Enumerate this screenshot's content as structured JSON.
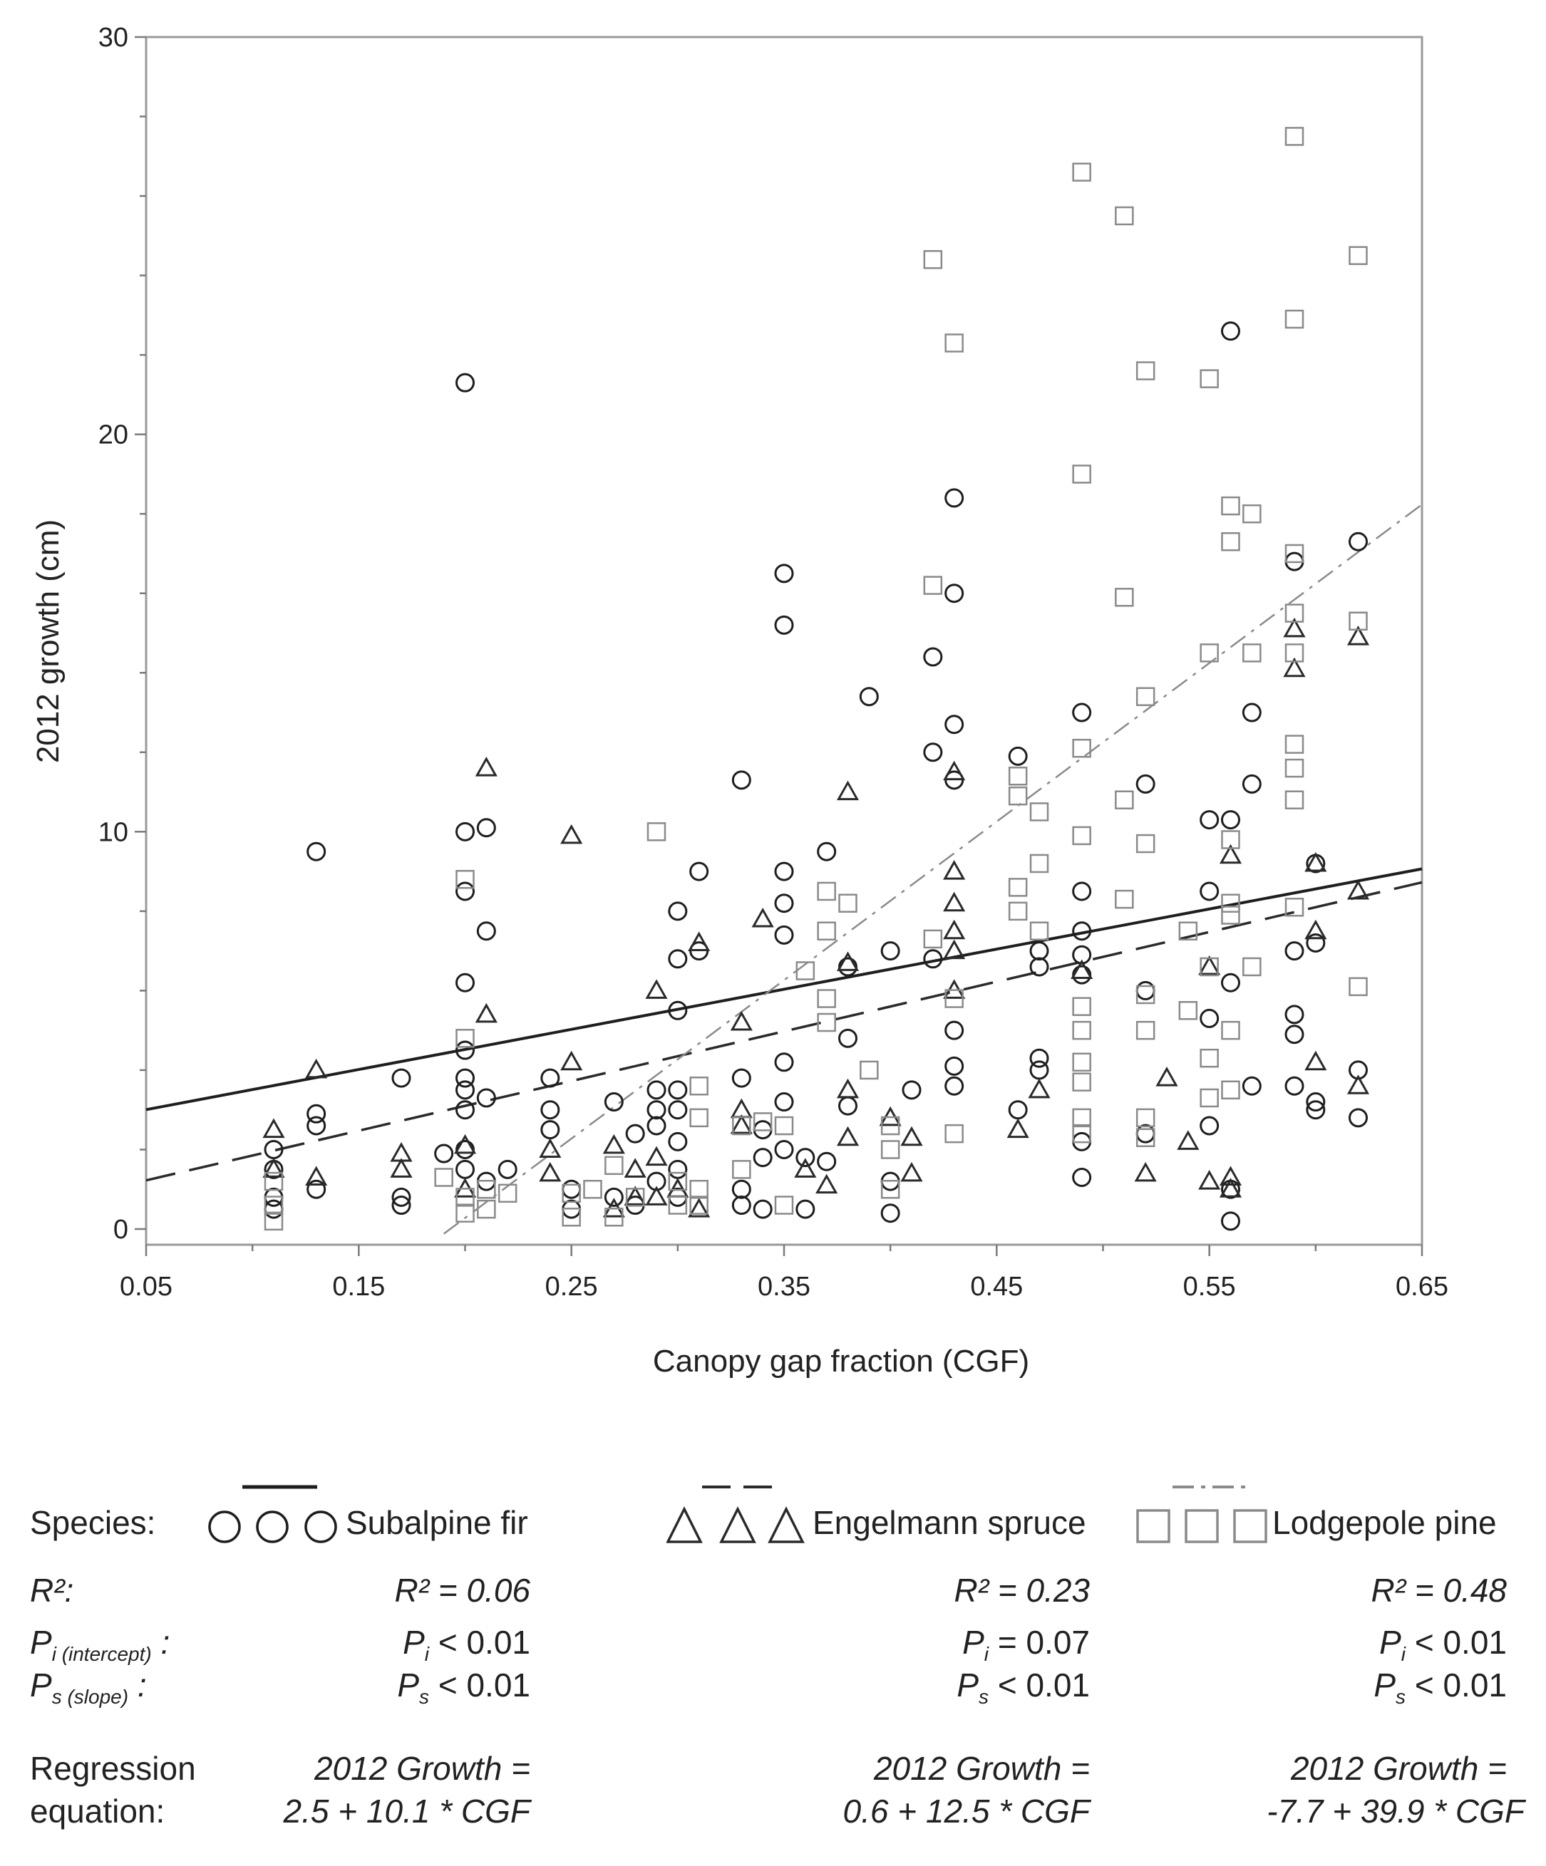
{
  "chart_data": {
    "type": "scatter",
    "xlabel": "Canopy gap fraction (CGF)",
    "ylabel": "2012 growth (cm)",
    "xlim": [
      0.05,
      0.65
    ],
    "ylim": [
      0,
      30
    ],
    "xticks": [
      "0.05",
      "0.15",
      "0.25",
      "0.35",
      "0.45",
      "0.55",
      "0.65"
    ],
    "yticks": [
      "0",
      "10",
      "20",
      "30"
    ],
    "series": [
      {
        "name": "Subalpine fir",
        "marker": "circle",
        "line_style": "solid",
        "regression": {
          "intercept": 2.5,
          "slope": 10.1,
          "x_range": [
            0.05,
            0.65
          ]
        },
        "points": [
          [
            0.11,
            0.5
          ],
          [
            0.11,
            0.8
          ],
          [
            0.11,
            1.5
          ],
          [
            0.11,
            2.0
          ],
          [
            0.13,
            2.6
          ],
          [
            0.13,
            2.9
          ],
          [
            0.13,
            9.5
          ],
          [
            0.13,
            1.0
          ],
          [
            0.17,
            0.6
          ],
          [
            0.17,
            0.8
          ],
          [
            0.17,
            3.8
          ],
          [
            0.19,
            1.9
          ],
          [
            0.2,
            1.5
          ],
          [
            0.2,
            2.0
          ],
          [
            0.2,
            3.0
          ],
          [
            0.2,
            3.5
          ],
          [
            0.2,
            3.8
          ],
          [
            0.2,
            4.5
          ],
          [
            0.2,
            6.2
          ],
          [
            0.2,
            8.5
          ],
          [
            0.2,
            10.0
          ],
          [
            0.2,
            21.3
          ],
          [
            0.21,
            3.3
          ],
          [
            0.21,
            7.5
          ],
          [
            0.21,
            10.1
          ],
          [
            0.21,
            1.2
          ],
          [
            0.22,
            1.5
          ],
          [
            0.24,
            2.5
          ],
          [
            0.24,
            3.0
          ],
          [
            0.24,
            3.8
          ],
          [
            0.25,
            1.0
          ],
          [
            0.25,
            0.5
          ],
          [
            0.27,
            3.2
          ],
          [
            0.27,
            0.8
          ],
          [
            0.28,
            2.4
          ],
          [
            0.28,
            0.6
          ],
          [
            0.29,
            3.5
          ],
          [
            0.29,
            3.0
          ],
          [
            0.29,
            2.6
          ],
          [
            0.29,
            1.2
          ],
          [
            0.3,
            0.8
          ],
          [
            0.3,
            1.5
          ],
          [
            0.3,
            2.2
          ],
          [
            0.3,
            3.0
          ],
          [
            0.3,
            3.5
          ],
          [
            0.3,
            5.5
          ],
          [
            0.3,
            6.8
          ],
          [
            0.3,
            8.0
          ],
          [
            0.31,
            9.0
          ],
          [
            0.31,
            7.0
          ],
          [
            0.33,
            11.3
          ],
          [
            0.33,
            3.8
          ],
          [
            0.33,
            1.0
          ],
          [
            0.33,
            0.6
          ],
          [
            0.34,
            2.5
          ],
          [
            0.34,
            1.8
          ],
          [
            0.34,
            0.5
          ],
          [
            0.35,
            15.2
          ],
          [
            0.35,
            16.5
          ],
          [
            0.35,
            9.0
          ],
          [
            0.35,
            8.2
          ],
          [
            0.35,
            7.4
          ],
          [
            0.35,
            4.2
          ],
          [
            0.35,
            3.2
          ],
          [
            0.35,
            2.0
          ],
          [
            0.36,
            1.8
          ],
          [
            0.36,
            0.5
          ],
          [
            0.37,
            9.5
          ],
          [
            0.37,
            1.7
          ],
          [
            0.38,
            6.6
          ],
          [
            0.38,
            4.8
          ],
          [
            0.38,
            3.1
          ],
          [
            0.39,
            13.4
          ],
          [
            0.4,
            7.0
          ],
          [
            0.4,
            1.2
          ],
          [
            0.4,
            0.4
          ],
          [
            0.41,
            3.5
          ],
          [
            0.42,
            12.0
          ],
          [
            0.42,
            14.4
          ],
          [
            0.42,
            6.8
          ],
          [
            0.43,
            18.4
          ],
          [
            0.43,
            16.0
          ],
          [
            0.43,
            12.7
          ],
          [
            0.43,
            11.3
          ],
          [
            0.43,
            5.0
          ],
          [
            0.43,
            4.1
          ],
          [
            0.43,
            3.6
          ],
          [
            0.46,
            11.9
          ],
          [
            0.46,
            3.0
          ],
          [
            0.47,
            7.0
          ],
          [
            0.47,
            6.6
          ],
          [
            0.47,
            4.3
          ],
          [
            0.47,
            4.0
          ],
          [
            0.49,
            13.0
          ],
          [
            0.49,
            8.5
          ],
          [
            0.49,
            7.5
          ],
          [
            0.49,
            6.9
          ],
          [
            0.49,
            6.4
          ],
          [
            0.49,
            2.2
          ],
          [
            0.49,
            1.3
          ],
          [
            0.52,
            11.2
          ],
          [
            0.52,
            6.0
          ],
          [
            0.52,
            2.4
          ],
          [
            0.55,
            10.3
          ],
          [
            0.55,
            8.5
          ],
          [
            0.55,
            5.3
          ],
          [
            0.55,
            2.6
          ],
          [
            0.56,
            22.6
          ],
          [
            0.56,
            10.3
          ],
          [
            0.56,
            6.2
          ],
          [
            0.56,
            1.0
          ],
          [
            0.56,
            0.2
          ],
          [
            0.57,
            13.0
          ],
          [
            0.57,
            11.2
          ],
          [
            0.57,
            3.6
          ],
          [
            0.59,
            16.8
          ],
          [
            0.59,
            7.0
          ],
          [
            0.59,
            5.4
          ],
          [
            0.59,
            4.9
          ],
          [
            0.59,
            3.6
          ],
          [
            0.6,
            9.2
          ],
          [
            0.6,
            7.2
          ],
          [
            0.6,
            3.2
          ],
          [
            0.6,
            3.0
          ],
          [
            0.62,
            17.3
          ],
          [
            0.62,
            4.0
          ],
          [
            0.62,
            2.8
          ]
        ]
      },
      {
        "name": "Engelmann spruce",
        "marker": "triangle",
        "line_style": "dashed",
        "regression": {
          "intercept": 0.6,
          "slope": 12.5,
          "x_range": [
            0.05,
            0.65
          ]
        },
        "points": [
          [
            0.11,
            2.5
          ],
          [
            0.11,
            1.5
          ],
          [
            0.13,
            4.0
          ],
          [
            0.13,
            1.3
          ],
          [
            0.17,
            1.9
          ],
          [
            0.17,
            1.5
          ],
          [
            0.2,
            2.1
          ],
          [
            0.2,
            1.0
          ],
          [
            0.21,
            11.6
          ],
          [
            0.21,
            5.4
          ],
          [
            0.24,
            2.0
          ],
          [
            0.24,
            1.4
          ],
          [
            0.25,
            9.9
          ],
          [
            0.25,
            4.2
          ],
          [
            0.27,
            2.1
          ],
          [
            0.27,
            0.5
          ],
          [
            0.28,
            1.5
          ],
          [
            0.28,
            0.8
          ],
          [
            0.29,
            6.0
          ],
          [
            0.29,
            1.8
          ],
          [
            0.29,
            0.8
          ],
          [
            0.3,
            1.0
          ],
          [
            0.31,
            7.2
          ],
          [
            0.31,
            0.5
          ],
          [
            0.33,
            5.2
          ],
          [
            0.33,
            3.0
          ],
          [
            0.33,
            2.6
          ],
          [
            0.34,
            7.8
          ],
          [
            0.36,
            1.5
          ],
          [
            0.37,
            1.1
          ],
          [
            0.38,
            11.0
          ],
          [
            0.38,
            6.7
          ],
          [
            0.38,
            3.5
          ],
          [
            0.38,
            2.3
          ],
          [
            0.4,
            2.8
          ],
          [
            0.41,
            2.3
          ],
          [
            0.41,
            1.4
          ],
          [
            0.43,
            11.5
          ],
          [
            0.43,
            9.0
          ],
          [
            0.43,
            8.2
          ],
          [
            0.43,
            7.5
          ],
          [
            0.43,
            7.0
          ],
          [
            0.43,
            6.0
          ],
          [
            0.46,
            2.5
          ],
          [
            0.47,
            3.5
          ],
          [
            0.49,
            6.5
          ],
          [
            0.52,
            1.4
          ],
          [
            0.53,
            3.8
          ],
          [
            0.54,
            2.2
          ],
          [
            0.55,
            6.6
          ],
          [
            0.55,
            1.2
          ],
          [
            0.56,
            9.4
          ],
          [
            0.56,
            1.3
          ],
          [
            0.56,
            1.0
          ],
          [
            0.59,
            15.1
          ],
          [
            0.59,
            14.1
          ],
          [
            0.6,
            9.2
          ],
          [
            0.6,
            7.5
          ],
          [
            0.6,
            4.2
          ],
          [
            0.62,
            14.9
          ],
          [
            0.62,
            8.5
          ],
          [
            0.62,
            3.6
          ]
        ]
      },
      {
        "name": "Lodgepole pine",
        "marker": "square",
        "line_style": "dashdot",
        "regression": {
          "intercept": -7.7,
          "slope": 39.9,
          "x_range": [
            0.19,
            0.65
          ]
        },
        "points": [
          [
            0.11,
            0.2
          ],
          [
            0.11,
            0.6
          ],
          [
            0.11,
            1.2
          ],
          [
            0.19,
            1.3
          ],
          [
            0.2,
            8.8
          ],
          [
            0.2,
            4.8
          ],
          [
            0.2,
            0.4
          ],
          [
            0.2,
            0.8
          ],
          [
            0.21,
            0.5
          ],
          [
            0.21,
            1.0
          ],
          [
            0.22,
            0.9
          ],
          [
            0.25,
            0.3
          ],
          [
            0.25,
            0.9
          ],
          [
            0.26,
            1.0
          ],
          [
            0.27,
            1.6
          ],
          [
            0.27,
            0.3
          ],
          [
            0.28,
            0.8
          ],
          [
            0.29,
            10.0
          ],
          [
            0.3,
            1.2
          ],
          [
            0.3,
            0.6
          ],
          [
            0.31,
            3.6
          ],
          [
            0.31,
            2.8
          ],
          [
            0.31,
            1.0
          ],
          [
            0.31,
            0.6
          ],
          [
            0.33,
            2.6
          ],
          [
            0.33,
            1.5
          ],
          [
            0.34,
            2.7
          ],
          [
            0.35,
            2.6
          ],
          [
            0.35,
            0.6
          ],
          [
            0.36,
            6.5
          ],
          [
            0.37,
            8.5
          ],
          [
            0.37,
            7.5
          ],
          [
            0.37,
            5.2
          ],
          [
            0.37,
            5.8
          ],
          [
            0.38,
            8.2
          ],
          [
            0.39,
            4.0
          ],
          [
            0.4,
            2.6
          ],
          [
            0.4,
            2.0
          ],
          [
            0.4,
            1.0
          ],
          [
            0.42,
            24.4
          ],
          [
            0.42,
            16.2
          ],
          [
            0.42,
            7.3
          ],
          [
            0.43,
            22.3
          ],
          [
            0.43,
            2.4
          ],
          [
            0.43,
            5.8
          ],
          [
            0.46,
            11.4
          ],
          [
            0.46,
            10.9
          ],
          [
            0.46,
            8.6
          ],
          [
            0.46,
            8.0
          ],
          [
            0.47,
            10.5
          ],
          [
            0.47,
            9.2
          ],
          [
            0.47,
            7.5
          ],
          [
            0.49,
            26.6
          ],
          [
            0.49,
            19.0
          ],
          [
            0.49,
            12.1
          ],
          [
            0.49,
            9.9
          ],
          [
            0.49,
            5.6
          ],
          [
            0.49,
            5.0
          ],
          [
            0.49,
            4.2
          ],
          [
            0.49,
            3.7
          ],
          [
            0.49,
            2.8
          ],
          [
            0.49,
            2.4
          ],
          [
            0.51,
            25.5
          ],
          [
            0.51,
            15.9
          ],
          [
            0.51,
            10.8
          ],
          [
            0.51,
            8.3
          ],
          [
            0.52,
            21.6
          ],
          [
            0.52,
            13.4
          ],
          [
            0.52,
            9.7
          ],
          [
            0.52,
            5.9
          ],
          [
            0.52,
            5.0
          ],
          [
            0.52,
            2.8
          ],
          [
            0.52,
            2.3
          ],
          [
            0.54,
            7.5
          ],
          [
            0.54,
            5.5
          ],
          [
            0.55,
            21.4
          ],
          [
            0.55,
            14.5
          ],
          [
            0.55,
            6.6
          ],
          [
            0.55,
            4.3
          ],
          [
            0.55,
            3.3
          ],
          [
            0.56,
            18.2
          ],
          [
            0.56,
            17.3
          ],
          [
            0.56,
            9.8
          ],
          [
            0.56,
            8.2
          ],
          [
            0.56,
            7.9
          ],
          [
            0.56,
            5.0
          ],
          [
            0.56,
            3.5
          ],
          [
            0.57,
            18.0
          ],
          [
            0.57,
            14.5
          ],
          [
            0.57,
            6.6
          ],
          [
            0.59,
            27.5
          ],
          [
            0.59,
            22.9
          ],
          [
            0.59,
            17.0
          ],
          [
            0.59,
            15.5
          ],
          [
            0.59,
            14.5
          ],
          [
            0.59,
            12.2
          ],
          [
            0.59,
            11.6
          ],
          [
            0.59,
            10.8
          ],
          [
            0.59,
            8.1
          ],
          [
            0.62,
            24.5
          ],
          [
            0.62,
            15.3
          ],
          [
            0.62,
            6.1
          ]
        ]
      }
    ]
  },
  "legend": {
    "species_label": "Species:",
    "r2_label": "R²:",
    "pi_label_main": "P",
    "pi_label_sub": "i (intercept)",
    "ps_label_main": "P",
    "ps_label_sub": "s (slope)",
    "regression_label_line1": "Regression",
    "regression_label_line2": "equation:",
    "entries": [
      {
        "species": "Subalpine fir",
        "r2": "R² = 0.06",
        "pi": "< 0.01",
        "pi_op": "<",
        "ps": "< 0.01",
        "eq_line1": "2012 Growth =",
        "eq_line2": "2.5 + 10.1 * CGF"
      },
      {
        "species": "Engelmann spruce",
        "r2": "R² = 0.23",
        "pi": "= 0.07",
        "ps": "< 0.01",
        "eq_line1": "2012 Growth =",
        "eq_line2": "0.6 + 12.5 * CGF"
      },
      {
        "species": "Lodgepole pine",
        "r2": "R² = 0.48",
        "pi": "< 0.01",
        "ps": "< 0.01",
        "eq_line1": "2012 Growth =",
        "eq_line2": "-7.7 + 39.9 * CGF"
      }
    ]
  },
  "colors": {
    "subalpine_fir": "#1e1e1e",
    "engelmann_spruce": "#2a2a2a",
    "lodgepole_pine": "#8a8a8a",
    "axis": "#7a7a7a"
  }
}
